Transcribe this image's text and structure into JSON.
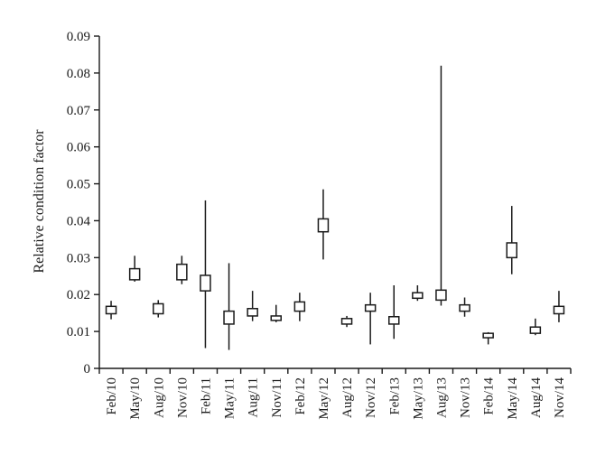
{
  "chart_data": {
    "type": "box",
    "title": "",
    "xlabel": "",
    "ylabel": "Relative condition factor",
    "ylim": [
      0,
      0.09
    ],
    "yticks": [
      "0",
      "0.01",
      "0.02",
      "0.03",
      "0.04",
      "0.05",
      "0.06",
      "0.07",
      "0.08",
      "0.09"
    ],
    "ytick_values": [
      0,
      0.01,
      0.02,
      0.03,
      0.04,
      0.05,
      0.06,
      0.07,
      0.08,
      0.09
    ],
    "grid": false,
    "categories": [
      "Feb/10",
      "May/10",
      "Aug/10",
      "Nov/10",
      "Feb/11",
      "May/11",
      "Aug/11",
      "Nov/11",
      "Feb/12",
      "May/12",
      "Aug/12",
      "Nov/12",
      "Feb/13",
      "May/13",
      "Aug/13",
      "Nov/13",
      "Feb/14",
      "May/14",
      "Aug/14",
      "Nov/14"
    ],
    "boxes": [
      {
        "min": 0.0133,
        "q1": 0.0148,
        "q3": 0.0168,
        "max": 0.0183
      },
      {
        "min": 0.0235,
        "q1": 0.024,
        "q3": 0.027,
        "max": 0.0305
      },
      {
        "min": 0.0138,
        "q1": 0.0148,
        "q3": 0.0175,
        "max": 0.0185
      },
      {
        "min": 0.0228,
        "q1": 0.024,
        "q3": 0.0282,
        "max": 0.0305
      },
      {
        "min": 0.0055,
        "q1": 0.021,
        "q3": 0.0252,
        "max": 0.0455
      },
      {
        "min": 0.005,
        "q1": 0.012,
        "q3": 0.0155,
        "max": 0.0285
      },
      {
        "min": 0.0128,
        "q1": 0.0142,
        "q3": 0.0162,
        "max": 0.021
      },
      {
        "min": 0.0125,
        "q1": 0.013,
        "q3": 0.0142,
        "max": 0.0172
      },
      {
        "min": 0.0128,
        "q1": 0.0155,
        "q3": 0.018,
        "max": 0.0205
      },
      {
        "min": 0.0295,
        "q1": 0.037,
        "q3": 0.0405,
        "max": 0.0485
      },
      {
        "min": 0.0112,
        "q1": 0.012,
        "q3": 0.0135,
        "max": 0.0142
      },
      {
        "min": 0.0065,
        "q1": 0.0155,
        "q3": 0.0172,
        "max": 0.0205
      },
      {
        "min": 0.008,
        "q1": 0.012,
        "q3": 0.014,
        "max": 0.0225
      },
      {
        "min": 0.0183,
        "q1": 0.019,
        "q3": 0.0205,
        "max": 0.0225
      },
      {
        "min": 0.017,
        "q1": 0.0185,
        "q3": 0.0212,
        "max": 0.082
      },
      {
        "min": 0.014,
        "q1": 0.0155,
        "q3": 0.0172,
        "max": 0.0192
      },
      {
        "min": 0.0065,
        "q1": 0.0083,
        "q3": 0.0095,
        "max": 0.0098
      },
      {
        "min": 0.0255,
        "q1": 0.03,
        "q3": 0.034,
        "max": 0.044
      },
      {
        "min": 0.009,
        "q1": 0.0095,
        "q3": 0.0112,
        "max": 0.0135
      },
      {
        "min": 0.0125,
        "q1": 0.0148,
        "q3": 0.0168,
        "max": 0.021
      }
    ]
  }
}
